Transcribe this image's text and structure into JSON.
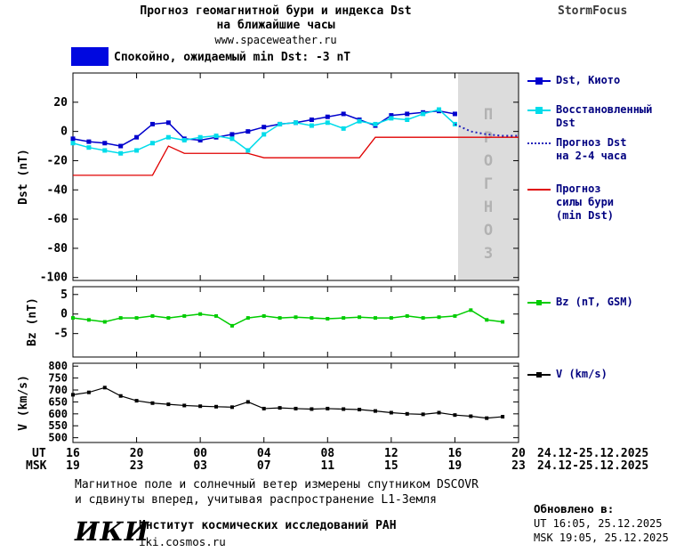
{
  "header": {
    "title_line1": "Прогноз геомагнитной бури и индекса Dst",
    "title_line2": "на ближайшие часы",
    "url": "www.spaceweather.ru",
    "brand": "StormFocus"
  },
  "status_banner": {
    "text": "Спокойно, ожидаемый min Dst: -3 nT"
  },
  "colors": {
    "banner": "#0008e0",
    "forecast_region": "#dcdcdc",
    "forecast_text": "#b2b2b2",
    "legend_text": "#000080"
  },
  "legend_dst": {
    "items": [
      {
        "id": "dst-kyoto",
        "label": "Dst, Киото"
      },
      {
        "id": "dst-recovered",
        "label": "Восстановленный\nDst"
      },
      {
        "id": "dst-forecast",
        "label": "Прогноз Dst\nна 2-4 часа"
      },
      {
        "id": "storm-forecast",
        "label": "Прогноз\nсилы бури\n(min Dst)"
      }
    ]
  },
  "legend_bz": {
    "label": "Bz (nT, GSM)"
  },
  "legend_v": {
    "label": "V (km/s)"
  },
  "xaxis": {
    "ut_label": "UT",
    "msk_label": "MSK",
    "ut_ticks": [
      "16",
      "20",
      "00",
      "04",
      "08",
      "12",
      "16",
      "20"
    ],
    "msk_ticks": [
      "19",
      "23",
      "03",
      "07",
      "11",
      "15",
      "19",
      "23"
    ],
    "ut_date_range": "24.12-25.12.2025",
    "msk_date_range": "24.12-25.12.2025"
  },
  "footer": {
    "desc_line1": "Магнитное поле и солнечный ветер измерены спутником DSCOVR",
    "desc_line2": "и сдвинуты вперед, учитывая распространение L1-Земля",
    "updated_title": "Обновлено в:",
    "updated_ut": "UT  16:05, 25.12.2025",
    "updated_msk": "MSK 19:05, 25.12.2025",
    "logo": "ИКИ",
    "institute": "Институт космических исследований РАН",
    "site": "iki.cosmos.ru"
  },
  "chart_data": [
    {
      "type": "line",
      "name": "dst",
      "ylabel": "Dst (nT)",
      "ylim": [
        -102,
        40
      ],
      "yticks": [
        20,
        0,
        -20,
        -40,
        -60,
        -80,
        -100
      ],
      "xlim": [
        0,
        28
      ],
      "xticks": [
        0,
        4,
        8,
        12,
        16,
        20,
        24,
        28
      ],
      "x_tick_labels_ut": [
        "16",
        "20",
        "00",
        "04",
        "08",
        "12",
        "16",
        "20"
      ],
      "forecast_region": [
        24.2,
        28
      ],
      "forecast_label": "ПРОГНОЗ",
      "series": [
        {
          "id": "dst-kyoto",
          "name": "Dst, Киото",
          "color": "#0000cd",
          "marker": "square",
          "marker_size": 5,
          "x_start": 0,
          "x_step": 1,
          "values": [
            -5,
            -7,
            -8,
            -10,
            -4,
            5,
            6,
            -5,
            -6,
            -4,
            -2,
            0,
            3,
            5,
            6,
            8,
            10,
            12,
            8,
            4,
            11,
            12,
            13,
            14,
            12
          ]
        },
        {
          "id": "dst-recovered",
          "name": "Восстановленный Dst",
          "color": "#00dcea",
          "marker": "square",
          "marker_size": 5,
          "x_start": 0,
          "x_step": 1,
          "values": [
            -8,
            -11,
            -13,
            -15,
            -13,
            -8,
            -4,
            -6,
            -4,
            -3,
            -5,
            -13,
            -2,
            5,
            6,
            4,
            6,
            2,
            7,
            5,
            9,
            8,
            12,
            15,
            5
          ]
        },
        {
          "id": "dst-forecast",
          "name": "Прогноз Dst на 2-4 часа",
          "color": "#2222bb",
          "style": "dotted",
          "x_start": 24,
          "x_step": 1,
          "values": [
            5,
            0,
            -2,
            -3,
            -3
          ]
        },
        {
          "id": "storm-forecast",
          "name": "Прогноз силы бури (min Dst)",
          "color": "#e00000",
          "width": 1.3,
          "x_start": 0,
          "x_step": 1,
          "values": [
            -30,
            -30,
            -30,
            -30,
            -30,
            -30,
            -10,
            -15,
            -15,
            -15,
            -15,
            -15,
            -18,
            -18,
            -18,
            -18,
            -18,
            -18,
            -18,
            -4,
            -4,
            -4,
            -4,
            -4,
            -4,
            -4,
            -4,
            -4,
            -4
          ]
        }
      ]
    },
    {
      "type": "line",
      "name": "bz",
      "ylabel": "Bz (nT)",
      "ylim": [
        -11,
        7
      ],
      "yticks": [
        5,
        0,
        -5
      ],
      "xlim": [
        0,
        28
      ],
      "xticks": [
        0,
        4,
        8,
        12,
        16,
        20,
        24,
        28
      ],
      "series": [
        {
          "id": "bz",
          "name": "Bz (nT, GSM)",
          "color": "#00cc00",
          "marker": "square",
          "marker_size": 4,
          "x_start": 0,
          "x_step": 1,
          "values": [
            -1,
            -1.5,
            -2,
            -1,
            -1,
            -0.5,
            -1,
            -0.5,
            0,
            -0.5,
            -3,
            -1,
            -0.5,
            -1,
            -0.8,
            -1,
            -1.2,
            -1,
            -0.8,
            -1,
            -1,
            -0.5,
            -1,
            -0.8,
            -0.5,
            1,
            -1.5,
            -2
          ]
        }
      ]
    },
    {
      "type": "line",
      "name": "v",
      "ylabel": "V (km/s)",
      "ylim": [
        480,
        812
      ],
      "yticks": [
        800,
        750,
        700,
        650,
        600,
        550,
        500
      ],
      "xlim": [
        0,
        28
      ],
      "xticks": [
        0,
        4,
        8,
        12,
        16,
        20,
        24,
        28
      ],
      "series": [
        {
          "id": "v",
          "name": "V (km/s)",
          "color": "#000000",
          "marker": "square",
          "marker_size": 4,
          "width": 1.2,
          "x_start": 0,
          "x_step": 1,
          "values": [
            680,
            690,
            710,
            675,
            655,
            645,
            640,
            635,
            632,
            630,
            628,
            650,
            622,
            625,
            622,
            620,
            622,
            620,
            618,
            612,
            605,
            600,
            598,
            605,
            595,
            590,
            582,
            588
          ]
        }
      ]
    }
  ]
}
